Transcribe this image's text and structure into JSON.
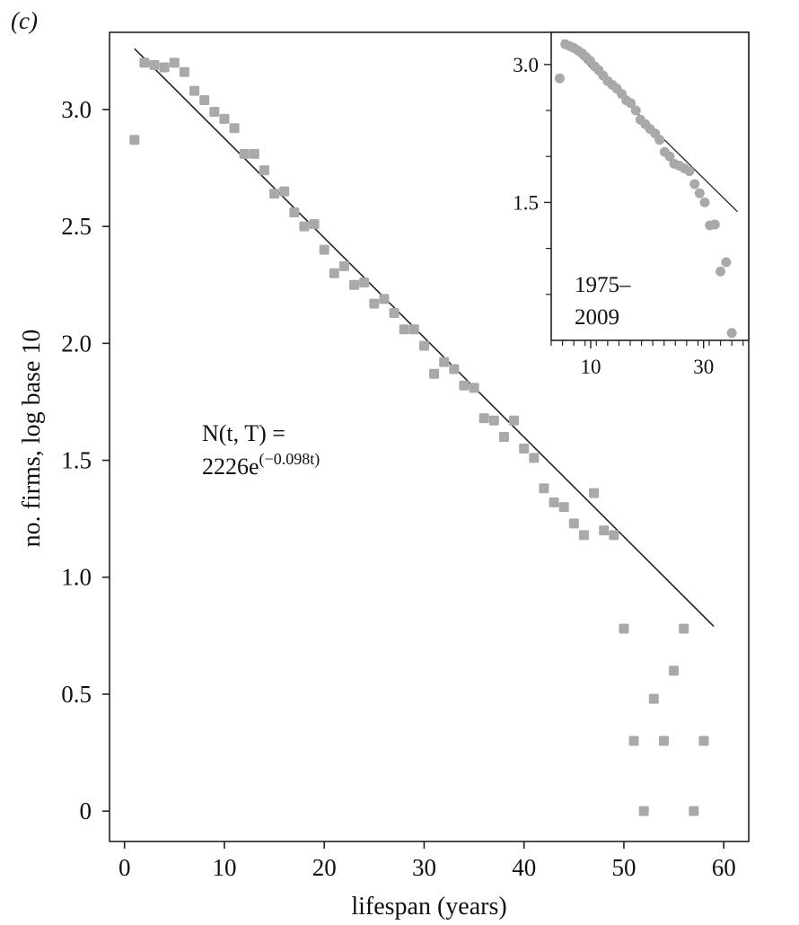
{
  "panel_label": "(c)",
  "colors": {
    "points": "#a9a9a9",
    "fit_line": "#222222",
    "axes": "#222222"
  },
  "chart_data": [
    {
      "id": "main",
      "type": "scatter",
      "xlabel": "lifespan (years)",
      "ylabel": "no. firms, log base 10",
      "xlim": [
        -1.5,
        62.5
      ],
      "ylim": [
        -0.13,
        3.33
      ],
      "xticks": [
        0,
        10,
        20,
        30,
        40,
        50,
        60
      ],
      "xtick_labels": [
        "0",
        "10",
        "20",
        "30",
        "40",
        "50",
        "60"
      ],
      "yticks": [
        0,
        0.5,
        1.0,
        1.5,
        2.0,
        2.5,
        3.0
      ],
      "ytick_labels": [
        "0",
        "0.5",
        "1.0",
        "1.5",
        "2.0",
        "2.5",
        "3.0"
      ],
      "annotation": {
        "line1": "N(t, T) =",
        "line2_base": "2226e",
        "line2_exp": "(−0.098t)"
      },
      "fit_line": {
        "x": [
          1,
          59
        ],
        "y": [
          3.26,
          0.79
        ]
      },
      "series": [
        {
          "name": "firms",
          "marker": "square",
          "x": [
            1,
            2,
            3,
            4,
            5,
            6,
            7,
            8,
            9,
            10,
            11,
            12,
            13,
            14,
            15,
            16,
            17,
            18,
            19,
            20,
            21,
            22,
            23,
            24,
            25,
            26,
            27,
            28,
            29,
            30,
            31,
            32,
            33,
            34,
            35,
            36,
            37,
            38,
            39,
            40,
            41,
            42,
            43,
            44,
            45,
            46,
            47,
            48,
            49,
            50,
            51,
            52,
            53,
            54,
            55,
            56,
            57,
            58
          ],
          "y": [
            2.87,
            3.2,
            3.19,
            3.18,
            3.2,
            3.16,
            3.08,
            3.04,
            2.99,
            2.96,
            2.92,
            2.81,
            2.81,
            2.74,
            2.64,
            2.65,
            2.56,
            2.5,
            2.51,
            2.4,
            2.3,
            2.33,
            2.25,
            2.26,
            2.17,
            2.19,
            2.13,
            2.06,
            2.06,
            1.99,
            1.87,
            1.92,
            1.89,
            1.82,
            1.81,
            1.68,
            1.67,
            1.6,
            1.67,
            1.55,
            1.51,
            1.38,
            1.32,
            1.3,
            1.23,
            1.18,
            1.36,
            1.2,
            1.18,
            0.78,
            0.3,
            0.0,
            0.48,
            0.3,
            0.6,
            0.78,
            0.0,
            0.3
          ]
        }
      ]
    },
    {
      "id": "inset",
      "type": "scatter",
      "annotation_line1": "1975–",
      "annotation_line2": "2009",
      "xlim": [
        3,
        38
      ],
      "ylim": [
        0.0,
        3.35
      ],
      "xticks": [
        10,
        30
      ],
      "xtick_labels": [
        "10",
        "30"
      ],
      "minor_xticks": [
        3,
        5,
        7,
        9,
        11,
        13,
        15,
        17,
        19,
        21,
        23,
        25,
        27,
        29,
        31,
        33,
        35,
        37
      ],
      "yticks": [
        3.0,
        1.5
      ],
      "ytick_labels": [
        "3.0",
        "1.5"
      ],
      "minor_yticks": [
        2.5,
        2.0,
        1.0,
        0.5
      ],
      "fit_line": {
        "x": [
          5,
          36
        ],
        "y": [
          3.27,
          1.4
        ]
      },
      "series": [
        {
          "name": "firms 1975–2009",
          "marker": "circle",
          "x": [
            4.5,
            5.5,
            6.3,
            7.0,
            7.8,
            8.5,
            9.2,
            9.9,
            10.7,
            11.4,
            12.2,
            13.0,
            13.8,
            14.6,
            15.5,
            16.3,
            17.1,
            18.0,
            18.8,
            19.7,
            20.5,
            21.4,
            22.2,
            23.1,
            24.0,
            24.8,
            25.7,
            26.6,
            27.5,
            28.4,
            29.3,
            30.2,
            31.1,
            32.0,
            33.0,
            34.0,
            35.0
          ],
          "y": [
            2.85,
            3.22,
            3.2,
            3.18,
            3.15,
            3.12,
            3.08,
            3.04,
            2.98,
            2.94,
            2.88,
            2.82,
            2.78,
            2.74,
            2.68,
            2.61,
            2.58,
            2.5,
            2.4,
            2.35,
            2.3,
            2.25,
            2.18,
            2.05,
            2.0,
            1.92,
            1.9,
            1.87,
            1.84,
            1.7,
            1.6,
            1.5,
            1.25,
            1.26,
            0.75,
            0.85,
            0.08
          ]
        }
      ]
    }
  ]
}
